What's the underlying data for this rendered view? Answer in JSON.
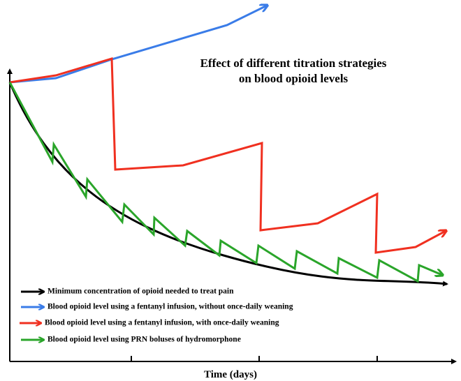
{
  "title": {
    "lines": [
      "Effect of different titration strategies",
      "on blood opioid levels"
    ]
  },
  "x_axis_label": "Time (days)",
  "legend": {
    "items": [
      "Minimum concentration of opioid needed to treat pain",
      "Blood opioid level using a fentanyl infusion, without once-daily weaning",
      "Blood opioid level using a fentanyl infusion, with once-daily weaning",
      "Blood opioid level using PRN boluses of hydromorphone"
    ]
  }
}
